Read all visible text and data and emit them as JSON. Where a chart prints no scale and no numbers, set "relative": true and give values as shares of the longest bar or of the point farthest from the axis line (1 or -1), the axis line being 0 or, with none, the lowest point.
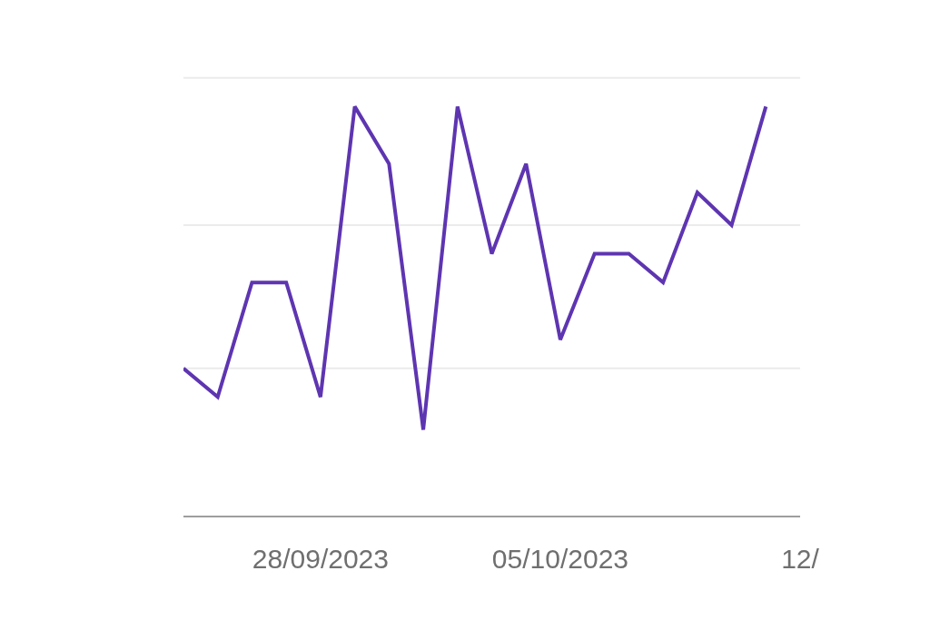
{
  "chart_data": {
    "type": "line",
    "relative": true,
    "x": [
      "2023-09-24",
      "2023-09-25",
      "2023-09-26",
      "2023-09-27",
      "2023-09-28",
      "2023-09-29",
      "2023-09-30",
      "2023-10-01",
      "2023-10-02",
      "2023-10-03",
      "2023-10-04",
      "2023-10-05",
      "2023-10-06",
      "2023-10-07",
      "2023-10-08",
      "2023-10-09",
      "2023-10-10",
      "2023-10-11"
    ],
    "xlim": [
      "2023-09-24",
      "2023-10-12"
    ],
    "xticks": [
      {
        "value": "2023-09-28",
        "label": "28/09/2023"
      },
      {
        "value": "2023-10-05",
        "label": "05/10/2023"
      },
      {
        "value": "2023-10-12",
        "label": "12/"
      }
    ],
    "ref_lines": [
      {
        "axis": "y",
        "value": 0.36,
        "color": "#ebebeb",
        "line_style": "solid"
      },
      {
        "axis": "y",
        "value": 0.71,
        "color": "#ebebeb",
        "line_style": "solid"
      },
      {
        "axis": "y",
        "value": 1.07,
        "color": "#ebebeb",
        "line_style": "solid"
      }
    ],
    "series": [
      {
        "color": "#5e35b1",
        "values": [
          0.36,
          0.29,
          0.57,
          0.57,
          0.29,
          1,
          0.86,
          0.21,
          1,
          0.64,
          0.86,
          0.43,
          0.64,
          0.64,
          0.57,
          0.79,
          0.71,
          1
        ]
      }
    ],
    "marker": "none",
    "line_style": "solid"
  }
}
